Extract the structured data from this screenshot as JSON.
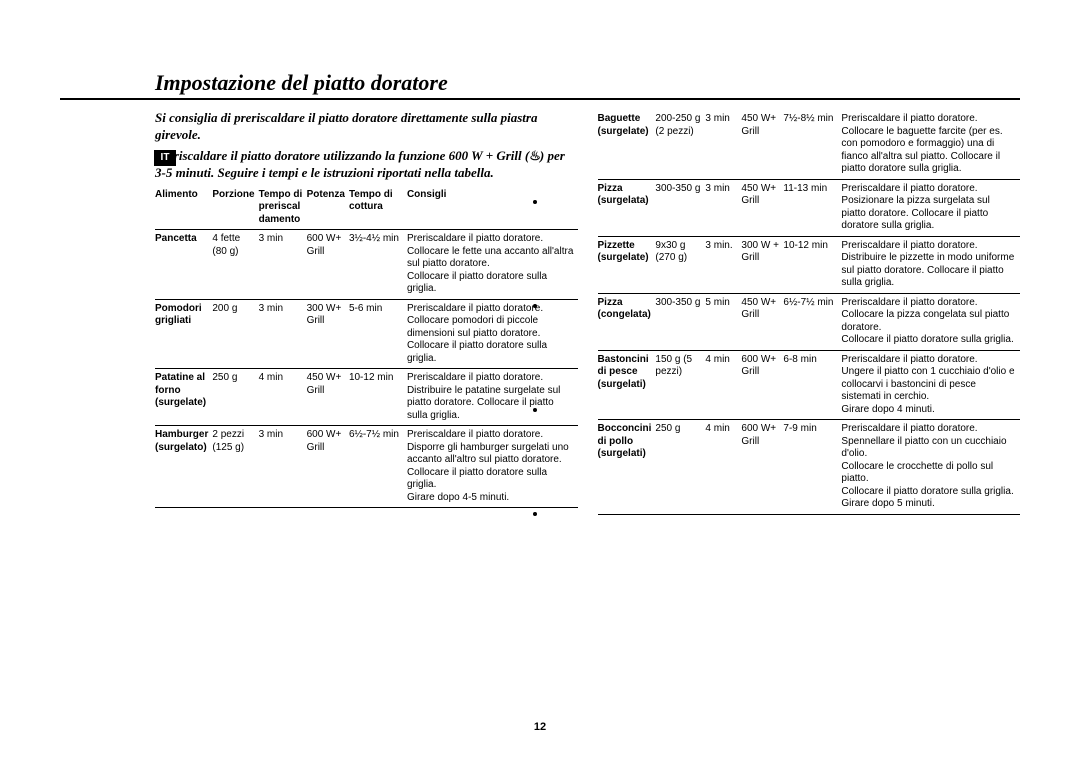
{
  "title": "Impostazione del piatto doratore",
  "langTab": "IT",
  "pageNumber": "12",
  "intro1": "Si consiglia di preriscaldare il piatto doratore direttamente sulla piastra girevole.",
  "intro2a": "Preriscaldare il piatto doratore utilizzando la funzione 600 W + Grill (",
  "intro2b": ") per 3-5 minuti. Seguire i tempi e le istruzioni riportati nella tabella.",
  "headers": {
    "food": "Alimento",
    "portion": "Porzione",
    "preheat": "Tempo di preriscal\ndamento",
    "power": "Potenza",
    "cook": "Tempo di cottura",
    "hints": "Consigli"
  },
  "leftRows": [
    {
      "food": "Pancetta",
      "portion": "4 fette (80 g)",
      "preheat": "3 min",
      "power": "600 W+ Grill",
      "cook": "3½-4½ min",
      "hints": "Preriscaldare il piatto doratore.\nCollocare le fette una accanto all'altra sul piatto doratore.\nCollocare il piatto doratore sulla griglia."
    },
    {
      "food": "Pomodori grigliati",
      "portion": "200 g",
      "preheat": "3 min",
      "power": "300 W+ Grill",
      "cook": "5-6 min",
      "hints": "Preriscaldare il piatto doratore.\nCollocare pomodori di piccole dimensioni sul piatto doratore.\nCollocare il piatto doratore sulla griglia."
    },
    {
      "food": "Patatine al forno (surgelate)",
      "portion": "250 g",
      "preheat": "4 min",
      "power": "450 W+ Grill",
      "cook": "10-12 min",
      "hints": "Preriscaldare il piatto doratore.\nDistribuire le patatine surgelate sul piatto doratore. Collocare il piatto sulla griglia."
    },
    {
      "food": "Hamburger (surgelato)",
      "portion": "2 pezzi (125 g)",
      "preheat": "3 min",
      "power": "600 W+ Grill",
      "cook": "6½-7½ min",
      "hints": "Preriscaldare il piatto doratore.\nDisporre gli hamburger surgelati uno accanto all'altro sul piatto doratore. Collocare il piatto doratore sulla griglia.\nGirare dopo 4-5 minuti."
    }
  ],
  "rightRows": [
    {
      "food": "Baguette (surgelate)",
      "portion": "200-250 g (2 pezzi)",
      "preheat": "3 min",
      "power": "450 W+ Grill",
      "cook": "7½-8½ min",
      "hints": "Preriscaldare il piatto doratore.\nCollocare le baguette farcite (per es. con pomodoro e formaggio) una di fianco all'altra sul piatto. Collocare il piatto doratore sulla griglia."
    },
    {
      "food": "Pizza (surgelata)",
      "portion": "300-350 g",
      "preheat": "3 min",
      "power": "450 W+ Grill",
      "cook": "11-13 min",
      "hints": "Preriscaldare il piatto doratore.\nPosizionare la pizza surgelata sul piatto doratore. Collocare il piatto doratore sulla griglia."
    },
    {
      "food": "Pizzette (surgelate)",
      "portion": "9x30 g (270 g)",
      "preheat": "3 min.",
      "power": "300 W + Grill",
      "cook": "10-12 min",
      "hints": "Preriscaldare il piatto doratore.\nDistribuire le pizzette in modo uniforme sul piatto doratore. Collocare il piatto sulla griglia."
    },
    {
      "food": "Pizza (congelata)",
      "portion": "300-350 g",
      "preheat": "5 min",
      "power": "450 W+ Grill",
      "cook": "6½-7½ min",
      "hints": "Preriscaldare il piatto doratore.\nCollocare la pizza congelata sul piatto doratore.\nCollocare il piatto doratore sulla griglia."
    },
    {
      "food": "Bastoncini di pesce (surgelati)",
      "portion": "150 g (5 pezzi)",
      "preheat": "4 min",
      "power": "600 W+ Grill",
      "cook": "6-8 min",
      "hints": "Preriscaldare il piatto doratore.\nUngere il piatto con 1 cucchiaio d'olio e collocarvi i bastoncini di pesce sistemati in cerchio.\nGirare dopo 4 minuti."
    },
    {
      "food": "Bocconcini di pollo (surgelati)",
      "portion": "250 g",
      "preheat": "4 min",
      "power": "600 W+ Grill",
      "cook": "7-9 min",
      "hints": "Preriscaldare il piatto doratore.\nSpennellare il piatto con un cucchiaio d'olio.\nCollocare le crocchette di pollo sul piatto.\nCollocare il piatto doratore sulla griglia.\nGirare dopo 5 minuti."
    }
  ]
}
